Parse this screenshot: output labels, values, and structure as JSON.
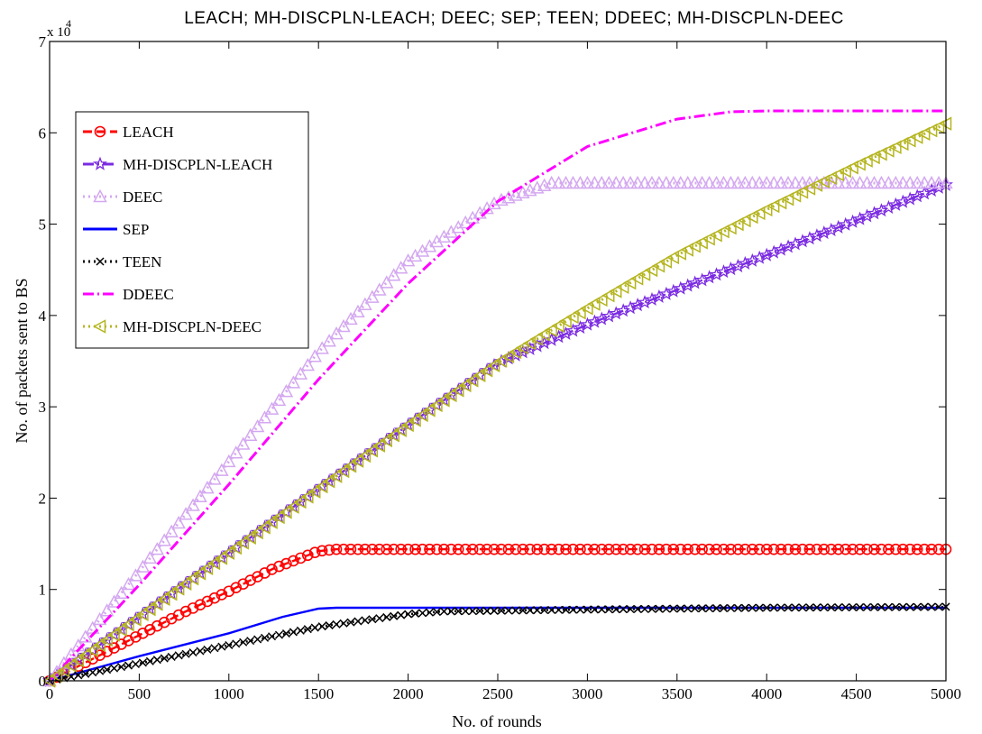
{
  "chart_data": {
    "type": "line",
    "title": "LEACH; MH-DISCPLN-LEACH; DEEC; SEP; TEEN; DDEEC; MH-DISCPLN-DEEC",
    "xlabel": "No. of rounds",
    "ylabel": "No. of packets sent to BS",
    "xlim": [
      0,
      5000
    ],
    "ylim": [
      0,
      70000
    ],
    "x_ticks": [
      "0",
      "500",
      "1000",
      "1500",
      "2000",
      "2500",
      "3000",
      "3500",
      "4000",
      "4500",
      "5000"
    ],
    "y_ticks": [
      "0",
      "1",
      "2",
      "3",
      "4",
      "5",
      "6",
      "7"
    ],
    "y_multiplier": "x 10",
    "y_multiplier_exp": "4",
    "grid": false,
    "legend_position": "top-left",
    "series": [
      {
        "name": "LEACH",
        "color": "#ff0000",
        "dash": "dashed",
        "marker": "circle",
        "x": [
          0,
          250,
          500,
          750,
          1000,
          1250,
          1500,
          1600,
          2000,
          3000,
          4000,
          5000
        ],
        "y": [
          0,
          2500,
          5000,
          7500,
          9800,
          12300,
          14200,
          14400,
          14400,
          14400,
          14400,
          14400
        ]
      },
      {
        "name": "MH-DISCPLN-LEACH",
        "color": "#7b2be2",
        "dash": "dashdot",
        "marker": "star",
        "x": [
          0,
          500,
          1000,
          1500,
          2000,
          2500,
          3000,
          3500,
          4000,
          4500,
          5000
        ],
        "y": [
          0,
          7000,
          14000,
          21000,
          28000,
          34800,
          39000,
          42800,
          46600,
          50400,
          54300
        ]
      },
      {
        "name": "DEEC",
        "color": "#d4a8f0",
        "dash": "dotted",
        "marker": "triangle-up",
        "x": [
          0,
          500,
          1000,
          1500,
          2000,
          2500,
          2800,
          3000,
          4000,
          5000
        ],
        "y": [
          0,
          12000,
          24000,
          36000,
          46000,
          52500,
          54500,
          54500,
          54500,
          54500
        ]
      },
      {
        "name": "SEP",
        "color": "#0000ff",
        "dash": "solid",
        "marker": "none",
        "x": [
          0,
          500,
          1000,
          1300,
          1500,
          1600,
          2000,
          3000,
          4000,
          5000
        ],
        "y": [
          0,
          2700,
          5200,
          7000,
          7900,
          8000,
          8000,
          8000,
          8000,
          8000
        ]
      },
      {
        "name": "TEEN",
        "color": "#000000",
        "dash": "dotted",
        "marker": "x",
        "x": [
          0,
          500,
          1000,
          1500,
          2000,
          2200,
          3000,
          4000,
          5000
        ],
        "y": [
          0,
          1900,
          3900,
          5900,
          7300,
          7600,
          7800,
          8000,
          8100
        ]
      },
      {
        "name": "DDEEC",
        "color": "#ff00ff",
        "dash": "dashdot",
        "marker": "none",
        "x": [
          0,
          500,
          1000,
          1500,
          2000,
          2500,
          3000,
          3500,
          3800,
          4000,
          5000
        ],
        "y": [
          0,
          10500,
          21500,
          33000,
          43500,
          52500,
          58500,
          61500,
          62300,
          62400,
          62400
        ]
      },
      {
        "name": "MH-DISCPLN-DEEC",
        "color": "#b5b520",
        "dash": "dotted",
        "marker": "triangle-left",
        "x": [
          0,
          500,
          1000,
          1500,
          2000,
          2500,
          3000,
          3500,
          4000,
          4500,
          5000
        ],
        "y": [
          0,
          7000,
          14000,
          21000,
          28000,
          34800,
          40800,
          46600,
          51600,
          56400,
          61000
        ]
      }
    ]
  }
}
